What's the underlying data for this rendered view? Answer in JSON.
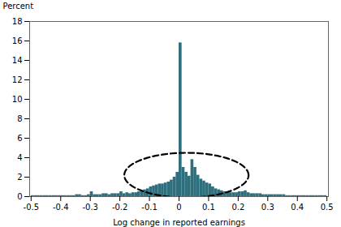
{
  "chart_data": {
    "type": "histogram",
    "xlabel": "Log change in reported earnings",
    "ylabel": "Percent",
    "color": "#2e6f7e",
    "bins": [
      -0.5,
      -0.49,
      -0.48,
      -0.47,
      -0.46,
      -0.45,
      -0.44,
      -0.43,
      -0.42,
      -0.41,
      -0.4,
      -0.39,
      -0.38,
      -0.37,
      -0.36,
      -0.35,
      -0.34,
      -0.33,
      -0.32,
      -0.31,
      -0.3,
      -0.29,
      -0.28,
      -0.27,
      -0.26,
      -0.25,
      -0.24,
      -0.23,
      -0.22,
      -0.21,
      -0.2,
      -0.19,
      -0.18,
      -0.17,
      -0.16,
      -0.15,
      -0.14,
      -0.13,
      -0.12,
      -0.11,
      -0.1,
      -0.09,
      -0.08,
      -0.07,
      -0.06,
      -0.05,
      -0.04,
      -0.03,
      -0.02,
      -0.01,
      0,
      0.01,
      0.02,
      0.03,
      0.04,
      0.05,
      0.06,
      0.07,
      0.08,
      0.09,
      0.1,
      0.11,
      0.12,
      0.13,
      0.14,
      0.15,
      0.16,
      0.17,
      0.18,
      0.19,
      0.2,
      0.21,
      0.22,
      0.23,
      0.24,
      0.25,
      0.26,
      0.27,
      0.28,
      0.29,
      0.3,
      0.31,
      0.32,
      0.33,
      0.34,
      0.35,
      0.36,
      0.37,
      0.38,
      0.39,
      0.4,
      0.41,
      0.42,
      0.43,
      0.44,
      0.45,
      0.46,
      0.47,
      0.48,
      0.49,
      0.5
    ],
    "values": [
      0.1,
      0.1,
      0.1,
      0.1,
      0.1,
      0.1,
      0.1,
      0.1,
      0.1,
      0.1,
      0.1,
      0.1,
      0.1,
      0.1,
      0.1,
      0.2,
      0.2,
      0.1,
      0.1,
      0.2,
      0.5,
      0.2,
      0.2,
      0.2,
      0.3,
      0.3,
      0.2,
      0.3,
      0.3,
      0.3,
      0.5,
      0.3,
      0.4,
      0.3,
      0.4,
      0.4,
      0.5,
      0.6,
      0.7,
      0.8,
      1.0,
      1.1,
      1.2,
      1.3,
      1.3,
      1.4,
      1.5,
      1.7,
      2.0,
      2.5,
      15.8,
      3.0,
      2.5,
      2.1,
      3.8,
      3.0,
      2.2,
      1.8,
      1.6,
      1.4,
      1.3,
      1.0,
      0.8,
      0.7,
      0.6,
      0.5,
      0.5,
      0.4,
      0.4,
      0.4,
      0.5,
      0.5,
      0.6,
      0.4,
      0.3,
      0.3,
      0.3,
      0.3,
      0.2,
      0.2,
      0.2,
      0.2,
      0.2,
      0.2,
      0.2,
      0.2,
      0.1,
      0.1,
      0.1,
      0.1,
      0.1,
      0.1,
      0.1,
      0.1,
      0.1,
      0.1,
      0.1,
      0.1,
      0.1,
      0.1
    ],
    "xlim": [
      -0.505,
      0.505
    ],
    "ylim": [
      0,
      18
    ],
    "xticks": [
      -0.5,
      -0.4,
      -0.3,
      -0.2,
      -0.1,
      0,
      0.1,
      0.2,
      0.3,
      0.4,
      0.5
    ],
    "yticks": [
      0,
      2,
      4,
      6,
      8,
      10,
      12,
      14,
      16,
      18
    ],
    "grid": false,
    "ellipse": {
      "cx": 0.025,
      "cy": 2.2,
      "width": 0.42,
      "height": 4.6,
      "color": "black",
      "line_style": "dashed"
    }
  }
}
